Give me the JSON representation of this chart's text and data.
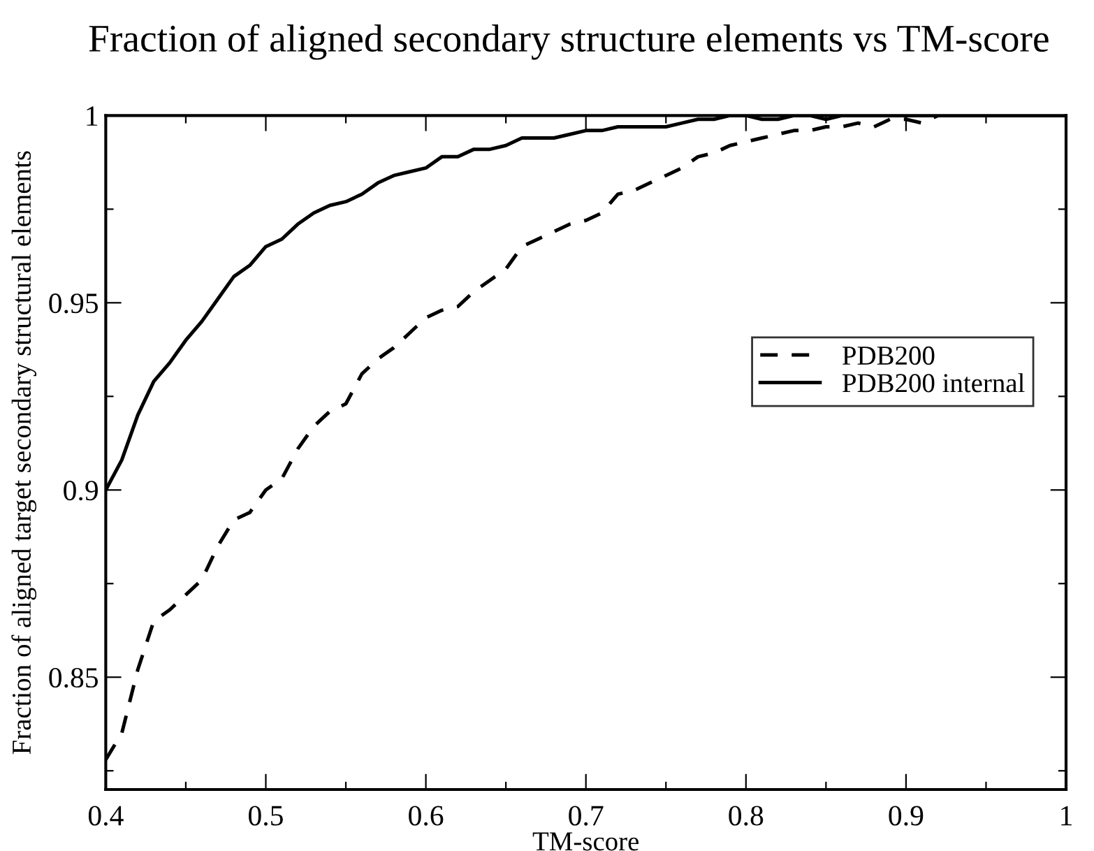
{
  "chart_data": {
    "type": "line",
    "title": "Fraction of aligned secondary structure elements vs TM-score",
    "xlabel": "TM-score",
    "ylabel": "Fraction of aligned target secondary structural elements",
    "x": [
      0.4,
      0.41,
      0.42,
      0.43,
      0.44,
      0.45,
      0.46,
      0.47,
      0.48,
      0.49,
      0.5,
      0.51,
      0.52,
      0.53,
      0.54,
      0.55,
      0.56,
      0.57,
      0.58,
      0.59,
      0.6,
      0.61,
      0.62,
      0.63,
      0.64,
      0.65,
      0.66,
      0.67,
      0.68,
      0.69,
      0.7,
      0.71,
      0.72,
      0.73,
      0.74,
      0.75,
      0.76,
      0.77,
      0.78,
      0.79,
      0.8,
      0.81,
      0.82,
      0.83,
      0.84,
      0.85,
      0.86,
      0.87,
      0.88,
      0.89,
      0.9,
      0.91,
      0.92,
      0.93,
      0.94,
      0.95,
      0.96,
      0.97,
      0.98,
      0.99,
      1.0
    ],
    "series": [
      {
        "name": "PDB200",
        "color": "#000000",
        "line_style": "dashed",
        "values": [
          0.828,
          0.835,
          0.852,
          0.865,
          0.868,
          0.872,
          0.876,
          0.885,
          0.892,
          0.894,
          0.9,
          0.903,
          0.911,
          0.917,
          0.921,
          0.923,
          0.931,
          0.935,
          0.938,
          0.942,
          0.946,
          0.948,
          0.949,
          0.953,
          0.956,
          0.959,
          0.965,
          0.967,
          0.969,
          0.971,
          0.972,
          0.974,
          0.979,
          0.98,
          0.982,
          0.984,
          0.986,
          0.989,
          0.99,
          0.992,
          0.993,
          0.994,
          0.995,
          0.996,
          0.996,
          0.997,
          0.997,
          0.998,
          0.997,
          0.999,
          0.999,
          0.998,
          1.0,
          1.0,
          1.0,
          1.0,
          1.0,
          1.0,
          1.0,
          1.0,
          1.0
        ]
      },
      {
        "name": "PDB200 internal",
        "color": "#000000",
        "line_style": "solid",
        "values": [
          0.9,
          0.908,
          0.92,
          0.929,
          0.934,
          0.94,
          0.945,
          0.951,
          0.957,
          0.96,
          0.965,
          0.967,
          0.971,
          0.974,
          0.976,
          0.977,
          0.979,
          0.982,
          0.984,
          0.985,
          0.986,
          0.989,
          0.989,
          0.991,
          0.991,
          0.992,
          0.994,
          0.994,
          0.994,
          0.995,
          0.996,
          0.996,
          0.997,
          0.997,
          0.997,
          0.997,
          0.998,
          0.999,
          0.999,
          1.0,
          1.0,
          0.999,
          0.999,
          1.0,
          1.0,
          0.999,
          1.0,
          1.0,
          1.0,
          1.0,
          1.0,
          1.0,
          1.0,
          1.0,
          1.0,
          1.0,
          1.0,
          1.0,
          1.0,
          1.0,
          1.0
        ]
      }
    ],
    "xlim": [
      0.4,
      1
    ],
    "ylim": [
      0.82,
      1
    ],
    "xticks": [
      0.4,
      {
        "value": 0.45,
        "label": null
      },
      0.5,
      {
        "value": 0.55,
        "label": null
      },
      0.6,
      {
        "value": 0.65,
        "label": null
      },
      0.7,
      {
        "value": 0.75,
        "label": null
      },
      0.8,
      {
        "value": 0.85,
        "label": null
      },
      0.9,
      {
        "value": 0.95,
        "label": null
      },
      1
    ],
    "yticks": [
      {
        "value": 0.825,
        "label": null
      },
      0.85,
      {
        "value": 0.875,
        "label": null
      },
      0.9,
      {
        "value": 0.925,
        "label": null
      },
      0.95,
      {
        "value": 0.975,
        "label": null
      },
      1
    ],
    "grid": false,
    "legend": "right",
    "marker": "none"
  }
}
